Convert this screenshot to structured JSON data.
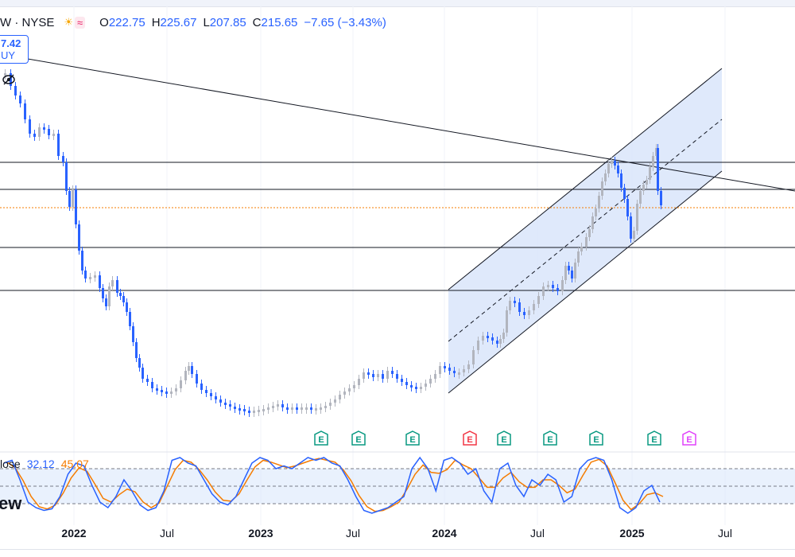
{
  "legend": {
    "symbol": "W · NYSE",
    "icons": [
      "sun-icon",
      "wave-icon"
    ],
    "open_label": "O",
    "open": "222.75",
    "high_label": "H",
    "high": "225.67",
    "low_label": "L",
    "low": "207.85",
    "close_label": "C",
    "close": "215.65",
    "change": "−7.65 (−3.43%)"
  },
  "price_box": {
    "price": "7.42",
    "action": "UY"
  },
  "oscillator": {
    "label": "lose",
    "value1": "32.12",
    "value2": "45.07"
  },
  "watermark": "ew",
  "x_axis": [
    {
      "label": "2022",
      "strong": true
    },
    {
      "label": "Jul",
      "strong": false
    },
    {
      "label": "2023",
      "strong": true
    },
    {
      "label": "Jul",
      "strong": false
    },
    {
      "label": "2024",
      "strong": true
    },
    {
      "label": "Jul",
      "strong": false
    },
    {
      "label": "2025",
      "strong": true
    },
    {
      "label": "Jul",
      "strong": false
    }
  ],
  "earnings": [
    {
      "letter": "E",
      "color": "#089981"
    },
    {
      "letter": "E",
      "color": "#089981"
    },
    {
      "letter": "E",
      "color": "#089981"
    },
    {
      "letter": "E",
      "color": "#f23645"
    },
    {
      "letter": "E",
      "color": "#089981"
    },
    {
      "letter": "E",
      "color": "#089981"
    },
    {
      "letter": "E",
      "color": "#089981"
    },
    {
      "letter": "E",
      "color": "#089981"
    },
    {
      "letter": "E",
      "color": "#e040fb"
    }
  ],
  "colors": {
    "up": "#b2b5be",
    "down": "#2962ff",
    "channel_fill": "#dbe7fb",
    "stoch_k": "#2962ff",
    "stoch_d": "#f57c00",
    "last_price_line": "#f57c00"
  }
}
